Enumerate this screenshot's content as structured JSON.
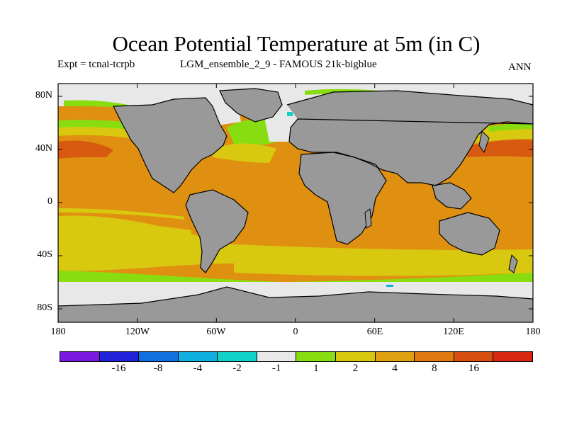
{
  "title": "Ocean Potential Temperature at 5m (in C)",
  "experiment": "Expt = tcnai-tcrpb",
  "run": "LGM_ensemble_2_9 - FAMOUS 21k-bigblue",
  "period": "ANN",
  "lat_ticks": [
    "80N",
    "40N",
    "0",
    "40S",
    "80S"
  ],
  "lon_ticks": [
    "180",
    "120W",
    "60W",
    "0",
    "60E",
    "120E",
    "180"
  ],
  "colorbar": {
    "colors": [
      "#7a1ae0",
      "#2222d8",
      "#1070e0",
      "#10b0e0",
      "#10d0c8",
      "#e8e8e8",
      "#88dd10",
      "#d8c810",
      "#e0a010",
      "#e07a10",
      "#d85010",
      "#d82810"
    ],
    "labels": [
      "-16",
      "-8",
      "-4",
      "-2",
      "-1",
      "1",
      "2",
      "4",
      "8",
      "16"
    ]
  },
  "map_colors": {
    "land": "#999999",
    "ice": "#e8e8e8",
    "green": "#88dd10",
    "yellow": "#d8c810",
    "orange": "#e09010",
    "darkorange": "#d85a10",
    "cyan": "#10d0c8"
  }
}
